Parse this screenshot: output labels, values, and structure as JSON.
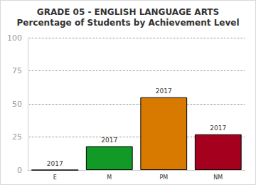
{
  "chart_data": {
    "type": "bar",
    "title": "GRADE 05 - ENGLISH LANGUAGE ARTS",
    "subtitle": "Percentage of Students by Achievement Level",
    "categories": [
      "E",
      "M",
      "PM",
      "NM"
    ],
    "series": [
      {
        "name": "2017",
        "colors": [
          "#3366cc",
          "#129a27",
          "#d97a00",
          "#a5001e"
        ],
        "values": [
          0,
          18,
          55,
          27
        ]
      }
    ],
    "ylim": [
      0,
      100
    ],
    "yticks": [
      0,
      25,
      50,
      75,
      100
    ],
    "grid": true
  }
}
